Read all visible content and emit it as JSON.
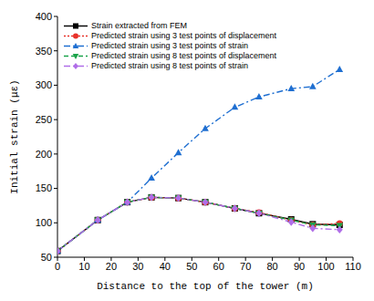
{
  "chart_data": {
    "type": "line",
    "x_label": "Distance to the top of the tower (m)",
    "y_label": "Initial strain (με)",
    "x": [
      0,
      15,
      26,
      35,
      45,
      55,
      66,
      75,
      87,
      95,
      105
    ],
    "xlim": [
      0,
      110
    ],
    "xticks": [
      0,
      10,
      20,
      30,
      40,
      50,
      60,
      70,
      80,
      90,
      100,
      110
    ],
    "ylim": [
      50,
      400
    ],
    "yticks": [
      50,
      100,
      150,
      200,
      250,
      300,
      350,
      400
    ],
    "legend": "upper left",
    "grid": false,
    "series": [
      {
        "name": "Strain extracted from FEM",
        "color": "#000000",
        "marker": "square",
        "line_style": "solid",
        "values": [
          59,
          104,
          130,
          137,
          136,
          130,
          121,
          114,
          105,
          98,
          97
        ]
      },
      {
        "name": "Predicted strain using 3 test points of displacement",
        "color": "#e8322a",
        "marker": "circle",
        "line_style": "dotted",
        "values": [
          59,
          104,
          130,
          137,
          136,
          130,
          121,
          115,
          104,
          97,
          99
        ]
      },
      {
        "name": "Predicted strain using 3 test points of strain",
        "color": "#1f6fd1",
        "marker": "triangle",
        "line_style": "dashdot",
        "values": [
          59,
          104,
          130,
          165,
          202,
          237,
          268,
          283,
          295,
          298,
          323
        ]
      },
      {
        "name": "Predicted strain using 8 test points of displacement",
        "color": "#1aa34a",
        "marker": "triangle_down",
        "line_style": "dashed",
        "values": [
          59,
          104,
          130,
          137,
          136,
          130,
          121,
          114,
          104,
          97,
          96
        ]
      },
      {
        "name": "Predicted strain using 8 test points of strain",
        "color": "#b06ee8",
        "marker": "diamond",
        "line_style": "dashdot",
        "values": [
          59,
          104,
          130,
          137,
          136,
          130,
          121,
          114,
          101,
          92,
          90
        ]
      }
    ]
  }
}
